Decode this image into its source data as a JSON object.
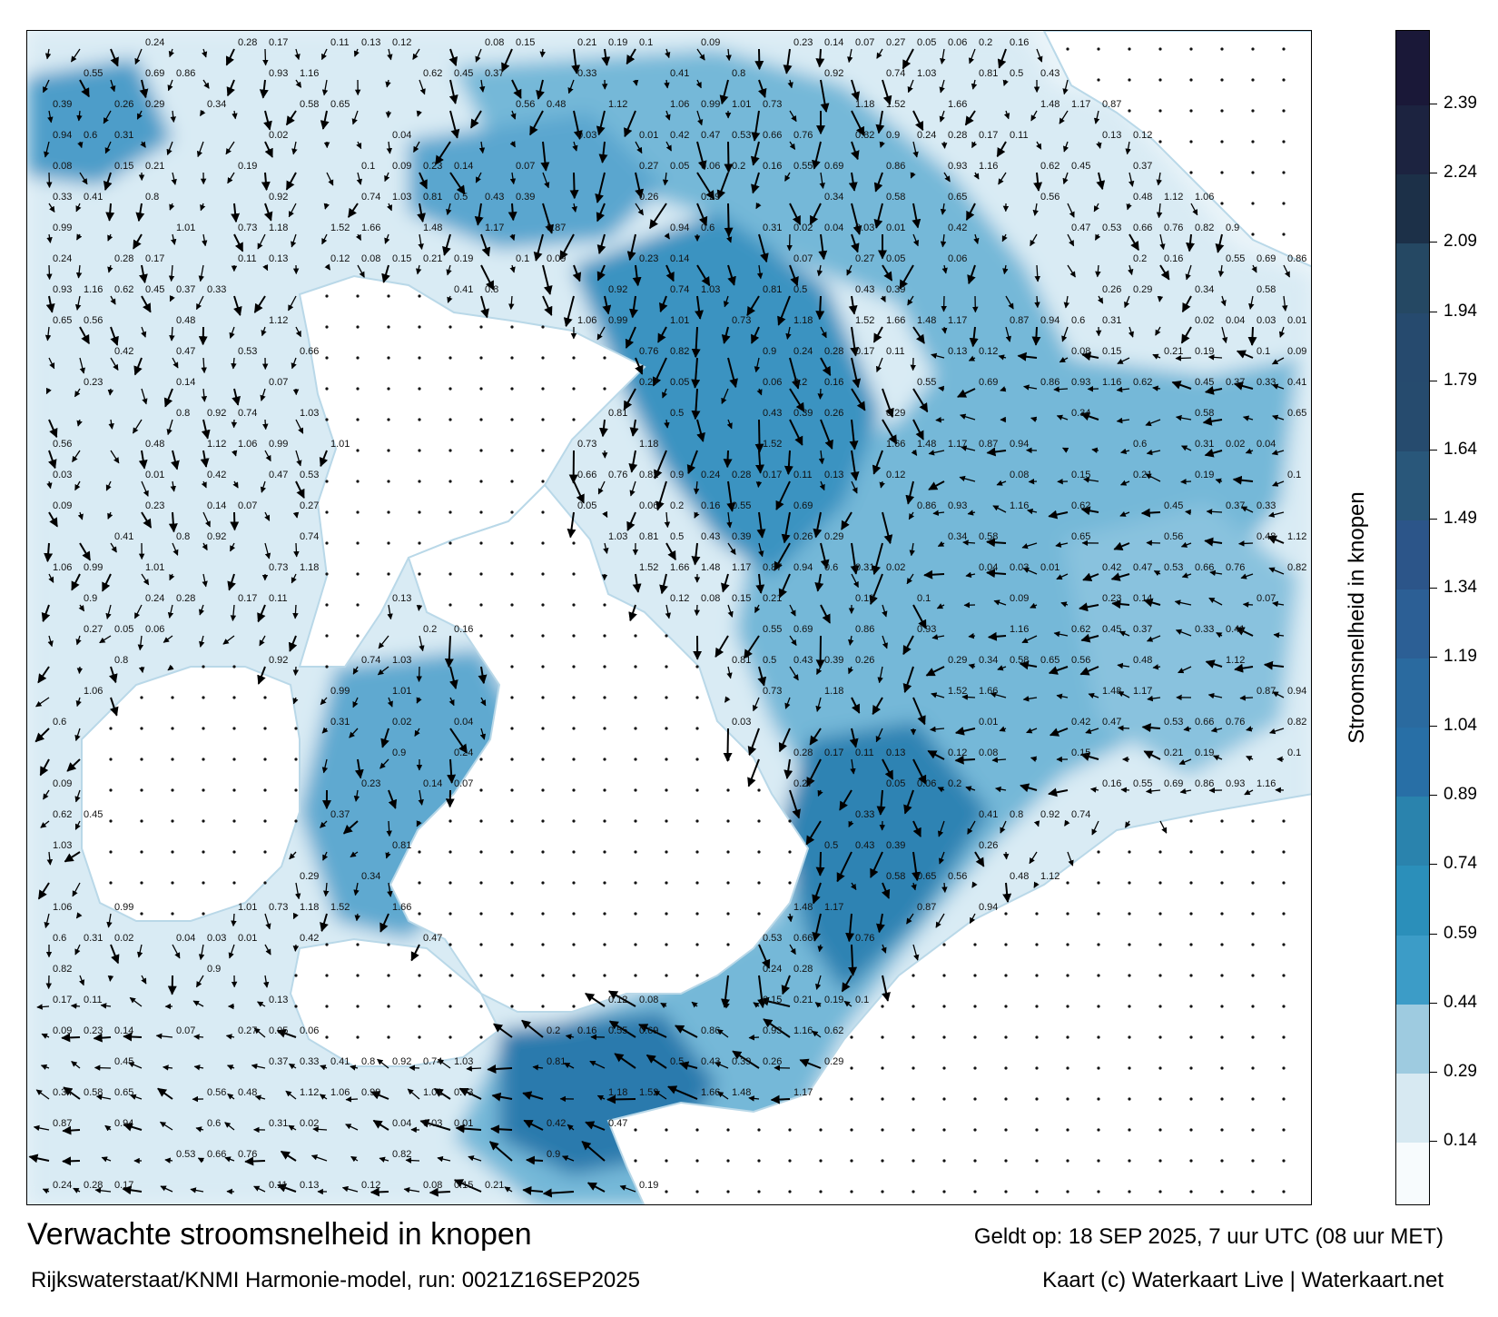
{
  "title": "Verwachte stroomsnelheid in knopen",
  "model_line": "Rijkswaterstaat/KNMI Harmonie-model, run: 0021Z16SEP2025",
  "valid_time": "Geldt op: 18 SEP 2025, 7 uur UTC (08 uur MET)",
  "copyright": "Kaart (c) Waterkaart Live | Waterkaart.net",
  "colorbar": {
    "title": "Stroomsnelheid in knopen",
    "ticks": [
      "2.39",
      "2.24",
      "2.09",
      "1.94",
      "1.79",
      "1.64",
      "1.49",
      "1.34",
      "1.19",
      "1.04",
      "0.89",
      "0.74",
      "0.59",
      "0.44",
      "0.29",
      "0.14"
    ],
    "range": [
      0,
      2.55
    ],
    "bands": [
      {
        "from": 0.0,
        "color": "#f7fbfd"
      },
      {
        "from": 0.14,
        "color": "#d7e9f2"
      },
      {
        "from": 0.29,
        "color": "#9ecbe0"
      },
      {
        "from": 0.44,
        "color": "#3c9cc7"
      },
      {
        "from": 0.59,
        "color": "#2b8fba"
      },
      {
        "from": 0.74,
        "color": "#2a83ad"
      },
      {
        "from": 0.89,
        "color": "#286fa6"
      },
      {
        "from": 1.04,
        "color": "#2a6a9f"
      },
      {
        "from": 1.19,
        "color": "#2c5f95"
      },
      {
        "from": 1.34,
        "color": "#2c5589"
      },
      {
        "from": 1.49,
        "color": "#29577a"
      },
      {
        "from": 1.64,
        "color": "#264b6e"
      },
      {
        "from": 1.79,
        "color": "#264a6e"
      },
      {
        "from": 1.94,
        "color": "#254863"
      },
      {
        "from": 2.09,
        "color": "#1c3048"
      },
      {
        "from": 2.24,
        "color": "#1c2340"
      },
      {
        "from": 2.39,
        "color": "#1a1838"
      }
    ]
  },
  "colors": {
    "land": "#ffffff",
    "water_light": "#eef6fa",
    "water_mid": "#5aaed3",
    "water_deep": "#1f6f9f",
    "arrow": "#000000"
  },
  "sample_values": [
    {
      "label": "0.24"
    },
    {
      "label": "0.28"
    },
    {
      "label": "0.17"
    },
    {
      "label": "0.11"
    },
    {
      "label": "0.13"
    },
    {
      "label": "0.12"
    },
    {
      "label": "0.08"
    },
    {
      "label": "0.15"
    },
    {
      "label": "0.21"
    },
    {
      "label": "0.19"
    },
    {
      "label": "0.1"
    },
    {
      "label": "0.09"
    },
    {
      "label": "0.23"
    },
    {
      "label": "0.14"
    },
    {
      "label": "0.07"
    },
    {
      "label": "0.27"
    },
    {
      "label": "0.05"
    },
    {
      "label": "0.06"
    },
    {
      "label": "0.2"
    },
    {
      "label": "0.16"
    },
    {
      "label": "0.55"
    },
    {
      "label": "0.69"
    },
    {
      "label": "0.86"
    },
    {
      "label": "0.93"
    },
    {
      "label": "1.16"
    },
    {
      "label": "0.62"
    },
    {
      "label": "0.45"
    },
    {
      "label": "0.37"
    },
    {
      "label": "0.33"
    },
    {
      "label": "0.41"
    },
    {
      "label": "0.8"
    },
    {
      "label": "0.92"
    },
    {
      "label": "0.74"
    },
    {
      "label": "1.03"
    },
    {
      "label": "0.81"
    },
    {
      "label": "0.5"
    },
    {
      "label": "0.43"
    },
    {
      "label": "0.39"
    },
    {
      "label": "0.26"
    },
    {
      "label": "0.29"
    },
    {
      "label": "0.34"
    },
    {
      "label": "0.58"
    },
    {
      "label": "0.65"
    },
    {
      "label": "0.56"
    },
    {
      "label": "0.48"
    },
    {
      "label": "1.12"
    },
    {
      "label": "1.06"
    },
    {
      "label": "0.99"
    },
    {
      "label": "1.01"
    },
    {
      "label": "0.73"
    },
    {
      "label": "1.18"
    },
    {
      "label": "1.52"
    },
    {
      "label": "1.66"
    },
    {
      "label": "1.48"
    },
    {
      "label": "1.17"
    },
    {
      "label": "0.87"
    },
    {
      "label": "0.94"
    },
    {
      "label": "0.6"
    },
    {
      "label": "0.31"
    },
    {
      "label": "0.02"
    },
    {
      "label": "0.04"
    },
    {
      "label": "0.03"
    },
    {
      "label": "0.01"
    },
    {
      "label": "0.42"
    },
    {
      "label": "0.47"
    },
    {
      "label": "0.53"
    },
    {
      "label": "0.66"
    },
    {
      "label": "0.76"
    },
    {
      "label": "0.82"
    },
    {
      "label": "0.9"
    }
  ]
}
